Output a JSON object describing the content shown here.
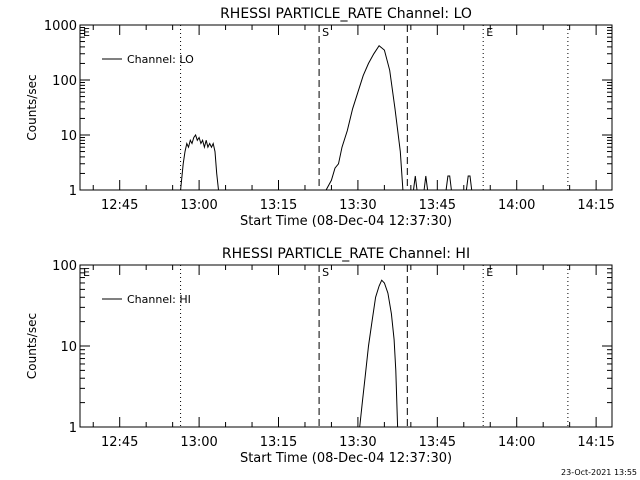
{
  "footer": {
    "timestamp": "23-Oct-2021 13:55"
  },
  "chart_data": [
    {
      "type": "line",
      "title": "RHESSI PARTICLE_RATE Channel: LO",
      "xlabel": "Start Time (08-Dec-04 12:37:30)",
      "ylabel": "Counts/sec",
      "y_scale": "log",
      "ylim": [
        1,
        1000
      ],
      "y_ticks": [
        "1",
        "10",
        "100",
        "1000"
      ],
      "xlim": [
        "12:37:30",
        "14:18:00"
      ],
      "x_ticks": [
        "12:45",
        "13:00",
        "13:15",
        "13:30",
        "13:45",
        "14:00",
        "14:15"
      ],
      "legend": {
        "label": "Channel: LO",
        "placement": "top-left"
      },
      "markers": [
        {
          "label": "E",
          "time": "12:37:30",
          "style": "dotted"
        },
        {
          "label": "",
          "time": "12:56:30",
          "style": "dotted"
        },
        {
          "label": "S",
          "time": "13:22:40",
          "style": "dashed"
        },
        {
          "label": "",
          "time": "13:39:20",
          "style": "dashed"
        },
        {
          "label": "E",
          "time": "13:53:40",
          "style": "dotted"
        },
        {
          "label": "",
          "time": "14:09:40",
          "style": "dotted"
        }
      ],
      "series": [
        {
          "name": "Channel: LO",
          "segments": [
            [
              [
                "12:56:30",
                1
              ],
              [
                "12:57:00",
                3
              ],
              [
                "12:57:20",
                5
              ],
              [
                "12:57:40",
                7
              ],
              [
                "12:58:00",
                6
              ],
              [
                "12:58:20",
                8
              ],
              [
                "12:58:40",
                7
              ],
              [
                "12:59:00",
                9
              ],
              [
                "12:59:20",
                10
              ],
              [
                "12:59:40",
                8
              ],
              [
                "13:00:00",
                9
              ],
              [
                "13:00:20",
                7
              ],
              [
                "13:00:40",
                8
              ],
              [
                "13:01:00",
                6
              ],
              [
                "13:01:20",
                8
              ],
              [
                "13:01:40",
                6
              ],
              [
                "13:02:00",
                7
              ],
              [
                "13:02:20",
                6
              ],
              [
                "13:02:40",
                7
              ],
              [
                "13:03:00",
                5
              ],
              [
                "13:03:20",
                2
              ],
              [
                "13:03:40",
                1
              ]
            ],
            [
              [
                "13:24:00",
                1
              ],
              [
                "13:25:00",
                1.5
              ],
              [
                "13:25:40",
                2.5
              ],
              [
                "13:26:20",
                3
              ],
              [
                "13:27:00",
                6
              ],
              [
                "13:28:00",
                12
              ],
              [
                "13:29:00",
                30
              ],
              [
                "13:30:00",
                60
              ],
              [
                "13:31:00",
                120
              ],
              [
                "13:32:00",
                200
              ],
              [
                "13:33:00",
                300
              ],
              [
                "13:34:00",
                420
              ],
              [
                "13:35:00",
                350
              ],
              [
                "13:36:00",
                150
              ],
              [
                "13:37:00",
                30
              ],
              [
                "13:38:00",
                5
              ],
              [
                "13:38:30",
                1
              ]
            ],
            [
              [
                "13:40:30",
                1
              ],
              [
                "13:40:50",
                1.8
              ],
              [
                "13:41:10",
                1
              ]
            ],
            [
              [
                "13:42:30",
                1
              ],
              [
                "13:42:50",
                1.8
              ],
              [
                "13:43:10",
                1
              ]
            ],
            [
              [
                "13:46:40",
                1
              ],
              [
                "13:47:00",
                1.8
              ],
              [
                "13:47:20",
                1.8
              ],
              [
                "13:47:40",
                1
              ]
            ],
            [
              [
                "13:50:30",
                1
              ],
              [
                "13:50:50",
                1.8
              ],
              [
                "13:51:10",
                1.8
              ],
              [
                "13:51:30",
                1
              ]
            ]
          ]
        }
      ]
    },
    {
      "type": "line",
      "title": "RHESSI PARTICLE_RATE Channel: HI",
      "xlabel": "Start Time (08-Dec-04 12:37:30)",
      "ylabel": "Counts/sec",
      "y_scale": "log",
      "ylim": [
        1,
        100
      ],
      "y_ticks": [
        "1",
        "10",
        "100"
      ],
      "xlim": [
        "12:37:30",
        "14:18:00"
      ],
      "x_ticks": [
        "12:45",
        "13:00",
        "13:15",
        "13:30",
        "13:45",
        "14:00",
        "14:15"
      ],
      "legend": {
        "label": "Channel: HI",
        "placement": "top-left"
      },
      "markers": [
        {
          "label": "E",
          "time": "12:37:30",
          "style": "dotted"
        },
        {
          "label": "",
          "time": "12:56:30",
          "style": "dotted"
        },
        {
          "label": "S",
          "time": "13:22:40",
          "style": "dashed"
        },
        {
          "label": "",
          "time": "13:39:20",
          "style": "dashed"
        },
        {
          "label": "E",
          "time": "13:53:40",
          "style": "dotted"
        },
        {
          "label": "",
          "time": "14:09:40",
          "style": "dotted"
        }
      ],
      "series": [
        {
          "name": "Channel: HI",
          "segments": [
            [
              [
                "13:30:20",
                1
              ],
              [
                "13:30:50",
                2
              ],
              [
                "13:31:20",
                4
              ],
              [
                "13:32:00",
                10
              ],
              [
                "13:32:40",
                20
              ],
              [
                "13:33:20",
                40
              ],
              [
                "13:34:00",
                55
              ],
              [
                "13:34:30",
                65
              ],
              [
                "13:35:00",
                60
              ],
              [
                "13:35:40",
                45
              ],
              [
                "13:36:20",
                25
              ],
              [
                "13:36:50",
                12
              ],
              [
                "13:37:10",
                5
              ],
              [
                "13:37:30",
                1
              ]
            ]
          ]
        }
      ]
    }
  ]
}
